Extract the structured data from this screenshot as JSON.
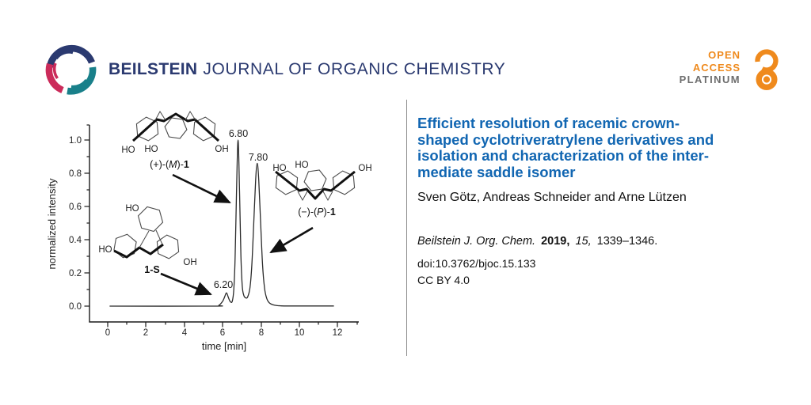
{
  "header": {
    "brand_bold": "BEILSTEIN",
    "brand_light": "JOURNAL OF ORGANIC CHEMISTRY",
    "badge": {
      "line1": "OPEN",
      "line2": "ACCESS",
      "line3": "PLATINUM"
    }
  },
  "article": {
    "title_lines": [
      "Efficient resolution of racemic crown-",
      "shaped cyclotriveratrylene derivatives and",
      "isolation and characterization of the inter-",
      "mediate saddle isomer"
    ],
    "authors": "Sven Götz, Andreas Schneider and Arne Lützen",
    "citation": {
      "journal": "Beilstein J. Org. Chem.",
      "year": "2019,",
      "volume": "15,",
      "pages": "1339–1346."
    },
    "doi": "doi:10.3762/bjoc.15.133",
    "license": "CC BY 4.0"
  },
  "chart": {
    "ylabel": "normalized intensity",
    "xlabel": "time [min]",
    "ytick_labels": [
      "0.0",
      "0.2",
      "0.4",
      "0.6",
      "0.8",
      "1.0"
    ],
    "xtick_labels": [
      "0",
      "2",
      "4",
      "6",
      "8",
      "10",
      "12"
    ],
    "peak_labels": {
      "saddle": "6.20",
      "first": "6.80",
      "second": "7.80"
    },
    "structures": {
      "m": {
        "pre": "(+)-(",
        "stereo": "M",
        "mid": ")-",
        "num": "1",
        "oh1": "HO",
        "oh2": "HO",
        "oh3": "OH"
      },
      "p": {
        "pre": "(−)-(",
        "stereo": "P",
        "mid": ")-",
        "num": "1",
        "oh1": "HO",
        "oh2": "HO",
        "oh3": "OH"
      },
      "s": {
        "label": "1-S",
        "oh1": "HO",
        "oh2": "HO",
        "oh3": "OH"
      }
    }
  },
  "chart_data": {
    "type": "line",
    "title": "HPLC chromatogram of racemic cyclotriveratrylene derivative 1",
    "xlabel": "time [min]",
    "ylabel": "normalized intensity",
    "xlim": [
      -1,
      13.1
    ],
    "ylim": [
      -0.12,
      1.1
    ],
    "xticks": [
      0,
      2,
      4,
      6,
      8,
      10,
      12
    ],
    "yticks": [
      0.0,
      0.2,
      0.4,
      0.6,
      0.8,
      1.0
    ],
    "grid": false,
    "legend": false,
    "peaks": [
      {
        "time_min": 6.2,
        "intensity": 0.08,
        "label": "6.20",
        "assignment": "1-S (saddle isomer)"
      },
      {
        "time_min": 6.8,
        "intensity": 1.0,
        "label": "6.80",
        "assignment": "(+)-(M)-1"
      },
      {
        "time_min": 7.8,
        "intensity": 0.86,
        "label": "7.80",
        "assignment": "(−)-(P)-1"
      }
    ],
    "trace": [
      [
        0.1,
        0
      ],
      [
        5.5,
        0
      ],
      [
        5.8,
        0.005
      ],
      [
        6.0,
        0.03
      ],
      [
        6.1,
        0.055
      ],
      [
        6.2,
        0.08
      ],
      [
        6.3,
        0.05
      ],
      [
        6.4,
        0.026
      ],
      [
        6.5,
        0.03
      ],
      [
        6.58,
        0.1
      ],
      [
        6.65,
        0.3
      ],
      [
        6.72,
        0.68
      ],
      [
        6.8,
        1.0
      ],
      [
        6.88,
        0.68
      ],
      [
        6.95,
        0.3
      ],
      [
        7.02,
        0.12
      ],
      [
        7.1,
        0.065
      ],
      [
        7.2,
        0.05
      ],
      [
        7.3,
        0.055
      ],
      [
        7.42,
        0.11
      ],
      [
        7.52,
        0.25
      ],
      [
        7.62,
        0.5
      ],
      [
        7.72,
        0.76
      ],
      [
        7.8,
        0.86
      ],
      [
        7.88,
        0.76
      ],
      [
        7.98,
        0.5
      ],
      [
        8.08,
        0.25
      ],
      [
        8.18,
        0.11
      ],
      [
        8.3,
        0.045
      ],
      [
        8.45,
        0.018
      ],
      [
        8.7,
        0.006
      ],
      [
        9.0,
        0.002
      ],
      [
        9.5,
        0.001
      ],
      [
        11.8,
        0.001
      ]
    ]
  },
  "colors": {
    "brand_navy": "#2b3a70",
    "brand_teal": "#19808a",
    "brand_crimson": "#cb2b5a",
    "title_blue": "#1166b2",
    "open_access_orange": "#ef8a1d",
    "platinum_gray": "#6e6e6e"
  }
}
